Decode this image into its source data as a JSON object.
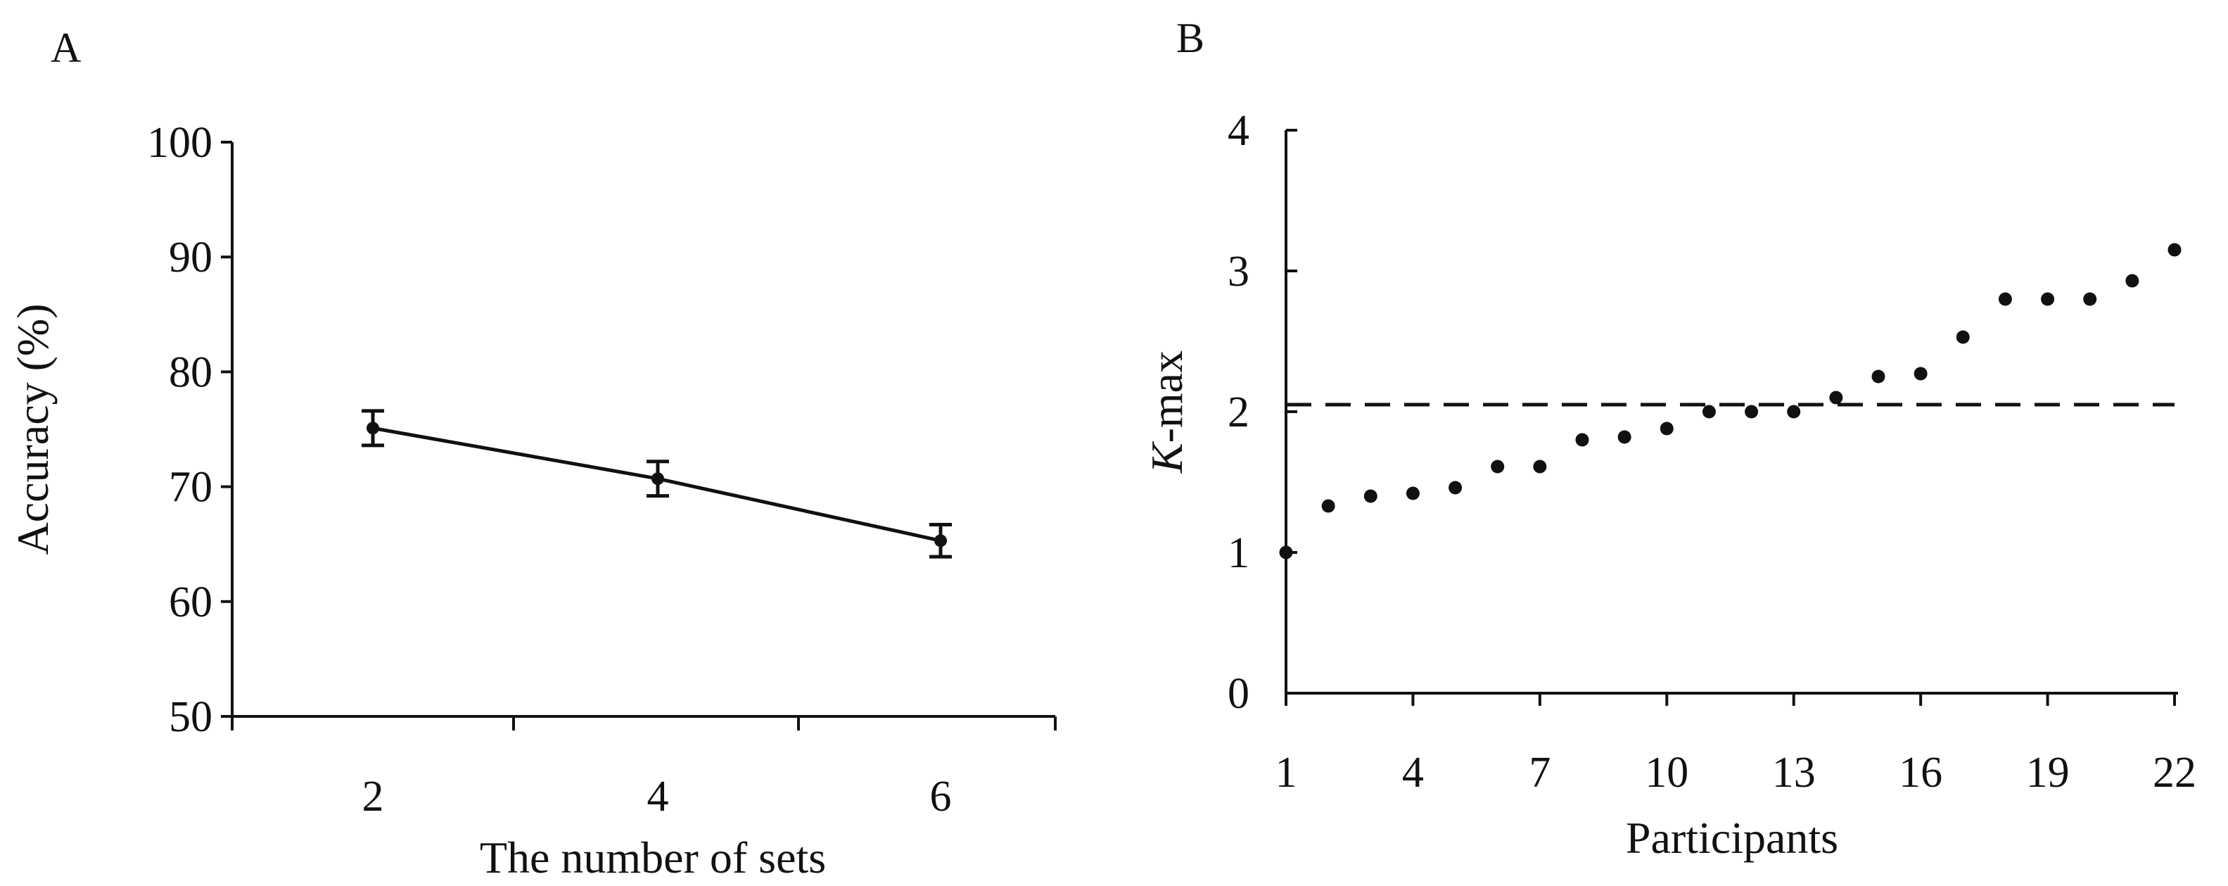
{
  "chart_data": [
    {
      "panel": "A",
      "type": "line",
      "xlabel": "The number of sets",
      "ylabel": "Accuracy (%)",
      "categories": [
        "2",
        "4",
        "6"
      ],
      "x": [
        2,
        4,
        6
      ],
      "values": [
        75.1,
        70.7,
        65.3
      ],
      "error": [
        1.5,
        1.5,
        1.4
      ],
      "ylim": [
        50,
        100
      ],
      "yticks": [
        50,
        60,
        70,
        80,
        90,
        100
      ],
      "ytick_labels": [
        "50",
        "60",
        "70",
        "80",
        "90",
        "100"
      ],
      "xticks_labels": [
        "2",
        "4",
        "6"
      ],
      "legend": "none",
      "grid": false
    },
    {
      "panel": "B",
      "type": "scatter",
      "xlabel": "Participants",
      "ylabel_italic": "K",
      "ylabel_rest": "-max",
      "x": [
        1,
        2,
        3,
        4,
        5,
        6,
        7,
        8,
        9,
        10,
        11,
        12,
        13,
        14,
        15,
        16,
        17,
        18,
        19,
        20,
        21,
        22
      ],
      "values": [
        1.0,
        1.33,
        1.4,
        1.42,
        1.46,
        1.61,
        1.61,
        1.8,
        1.82,
        1.88,
        2.0,
        2.0,
        2.0,
        2.1,
        2.25,
        2.27,
        2.53,
        2.8,
        2.8,
        2.8,
        2.93,
        3.15
      ],
      "reference_line": 2.05,
      "ylim": [
        0,
        4
      ],
      "xlim": [
        1,
        22
      ],
      "yticks": [
        0,
        1,
        2,
        3,
        4
      ],
      "ytick_labels": [
        "0",
        "1",
        "2",
        "3",
        "4"
      ],
      "xtick_values": [
        1,
        4,
        7,
        10,
        13,
        16,
        19,
        22
      ],
      "xtick_labels": [
        "1",
        "4",
        "7",
        "10",
        "13",
        "16",
        "19",
        "22"
      ],
      "legend": "none",
      "grid": false
    }
  ]
}
